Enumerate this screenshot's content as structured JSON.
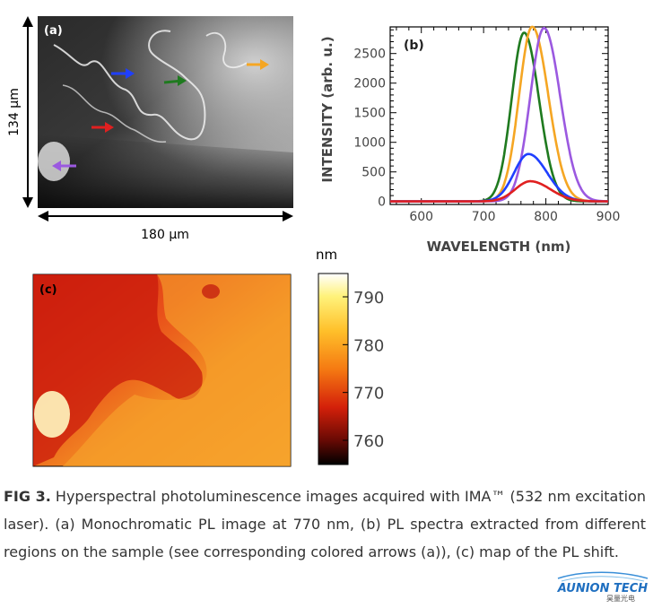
{
  "panel_a": {
    "label": "(a)",
    "height_label": "134 µm",
    "width_label": "180 µm",
    "arrows": [
      {
        "name": "orange-arrow",
        "color": "#f5a623"
      },
      {
        "name": "blue-arrow",
        "color": "#1f3fff"
      },
      {
        "name": "green-arrow",
        "color": "#1f7a1f"
      },
      {
        "name": "red-arrow",
        "color": "#e02020"
      },
      {
        "name": "purple-arrow",
        "color": "#9b59e0"
      }
    ]
  },
  "panel_b": {
    "label": "(b)",
    "chart_data": {
      "type": "line",
      "xlabel": "WAVELENGTH (nm)",
      "ylabel": "INTENSITY (arb. u.)",
      "xlim": [
        550,
        900
      ],
      "ylim": [
        -50,
        2950
      ],
      "xticks": [
        600,
        700,
        800,
        900
      ],
      "yticks": [
        0,
        500,
        1000,
        1500,
        2000,
        2500
      ],
      "series": [
        {
          "color": "#1f7a1f",
          "peak_x": 765,
          "peak_y": 2850,
          "sigma_left": 20,
          "sigma_right": 24
        },
        {
          "color": "#f5a623",
          "peak_x": 778,
          "peak_y": 2950,
          "sigma_left": 21,
          "sigma_right": 26
        },
        {
          "color": "#9b59e0",
          "peak_x": 797,
          "peak_y": 2930,
          "sigma_left": 22,
          "sigma_right": 26
        },
        {
          "color": "#1f3fff",
          "peak_x": 772,
          "peak_y": 800,
          "sigma_left": 23,
          "sigma_right": 30
        },
        {
          "color": "#e02020",
          "peak_x": 775,
          "peak_y": 340,
          "sigma_left": 24,
          "sigma_right": 32
        }
      ]
    }
  },
  "panel_c": {
    "label": "(c)",
    "colorbar_unit": "nm",
    "colorbar_ticks": [
      "790",
      "780",
      "770",
      "760"
    ]
  },
  "caption": {
    "label": "FIG 3.",
    "text": " Hyperspectral photoluminescence images acquired with IMA™ (532 nm excitation laser). (a) Monochromatic PL image at 770 nm, (b) PL spectra extracted from different regions on the sample (see corresponding colored arrows (a)), (c) map of the PL shift."
  },
  "logo": {
    "name": "AUNION TECH",
    "subtitle": "昊量光电"
  }
}
